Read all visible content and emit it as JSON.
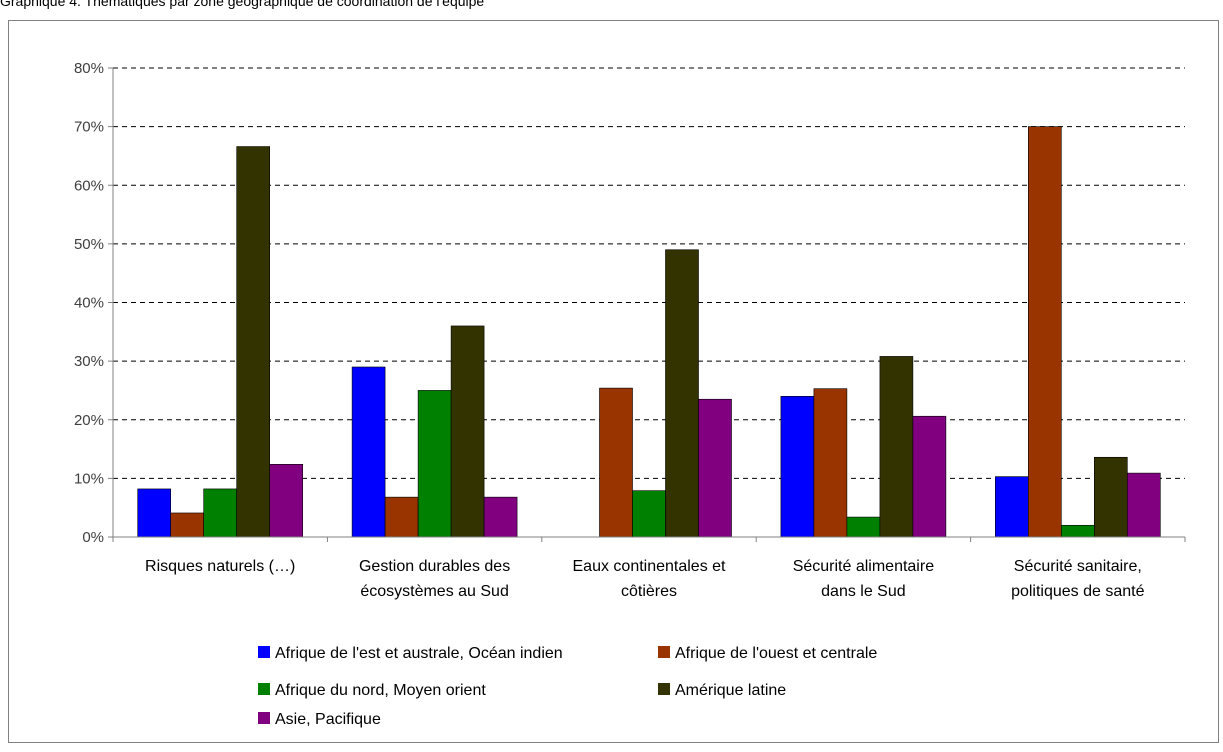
{
  "header_text": "Graphique 4. Thématiques par zone géographique de coordination de l'équipe",
  "chart_data": {
    "type": "bar",
    "categories": [
      [
        "Risques naturels (…)"
      ],
      [
        "Gestion durables des",
        "écosystèmes au Sud"
      ],
      [
        "Eaux continentales et",
        "côtières"
      ],
      [
        "Sécurité alimentaire",
        "dans le Sud"
      ],
      [
        "Sécurité sanitaire,",
        "politiques de santé"
      ]
    ],
    "series": [
      {
        "name": "Afrique de l'est et australe, Océan indien",
        "color": "#0000ff",
        "values": [
          8.2,
          29.0,
          0,
          24.0,
          10.3
        ]
      },
      {
        "name": "Afrique de l'ouest et centrale",
        "color": "#993300",
        "values": [
          4.1,
          6.8,
          25.4,
          25.3,
          70.0
        ]
      },
      {
        "name": "Afrique du nord, Moyen orient",
        "color": "#008000",
        "values": [
          8.2,
          25.0,
          7.9,
          3.4,
          2.0
        ]
      },
      {
        "name": "Amérique latine",
        "color": "#333300",
        "values": [
          66.6,
          36.0,
          49.0,
          30.8,
          13.6
        ]
      },
      {
        "name": "Asie, Pacifique",
        "color": "#800080",
        "values": [
          12.4,
          6.8,
          23.5,
          20.6,
          10.9
        ]
      }
    ],
    "ylim": [
      0,
      80
    ],
    "yticks": [
      "0%",
      "10%",
      "20%",
      "30%",
      "40%",
      "50%",
      "60%",
      "70%",
      "80%"
    ],
    "grid": true,
    "legend_position": "bottom",
    "colors": {
      "grid": "#000000",
      "axis": "#808080",
      "tick_text": "#404040"
    }
  }
}
